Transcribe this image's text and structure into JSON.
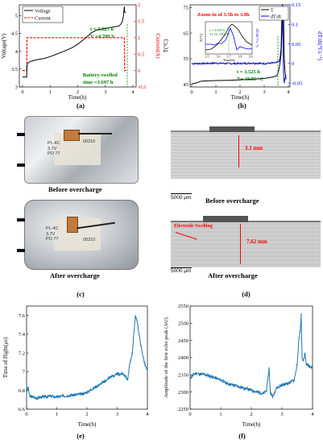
{
  "captions": [
    "(a)",
    "(b)",
    "(c)",
    "(d)",
    "(e)",
    "(f)"
  ],
  "panel_a": {
    "xlabel": "Time(h)",
    "ylabel_left": "Voltage(V)",
    "ylabel_right": "Current(A)",
    "legend": [
      "Voltage",
      "Current"
    ],
    "ann_t": "t = 3.525 h",
    "ann_v": "V =4.709 V",
    "ann_swell1": "Battery swelled",
    "ann_swell2": "time =3.697 h",
    "xticks": [
      "0",
      "1",
      "2",
      "3",
      "4"
    ],
    "yticks_left": [
      "3",
      "3.5",
      "4",
      "4.5",
      "5"
    ],
    "yticks_right": [
      "-0.5",
      "0",
      "0.5",
      "1",
      "1.5",
      "2"
    ],
    "colors": {
      "voltage": "#000000",
      "current": "#ff0000",
      "annotation": "#008000"
    }
  },
  "panel_b": {
    "xlabel": "Time(h)",
    "ylabel_left": "T(°C)",
    "ylabel_right": "dT/dt(°Cs⁻¹)",
    "legend": [
      "T",
      "dT/dt"
    ],
    "zoom_title": "Zoom-in of 3.5h to 3.9h",
    "inset_ann1": "t = 3.697 h",
    "inset_ann2": "T= 61.190 °C",
    "inset_xlabel": "Time(h)",
    "inset_ylabel_left": "T(°C)",
    "inset_ylabel_right": "dT/dt(°Cs⁻¹)",
    "inset_xticks": [
      "3.5",
      "3.6",
      "3.7",
      "3.8",
      "3.9"
    ],
    "ann_t": "t = 3.525 h",
    "ann_T": "T= 48.85 °C",
    "xticks": [
      "0",
      "1",
      "2",
      "3",
      "4"
    ],
    "yticks_left": [
      "45",
      "55",
      "65",
      "75"
    ],
    "yticks_right": [
      "-0.05",
      "0",
      "0.05",
      "0.1",
      "0.15"
    ],
    "colors": {
      "temp": "#000000",
      "dtdt": "#0000ff",
      "zoom": "#ff0000",
      "annotation": "#008000"
    }
  },
  "panel_c": {
    "before": "Before overcharge",
    "after": "After overcharge",
    "label_lines": [
      "PL-4C",
      "3.7V",
      "PO 77"
    ],
    "label_serial": "00210"
  },
  "panel_d": {
    "before": "Before overcharge",
    "after": "After overcharge",
    "scale": "5000 μm",
    "thickness_before": "3.1 mm",
    "thickness_after": "7.62 mm",
    "swelling": "Electrode Swelling",
    "colors": {
      "label": "#ff0000"
    }
  },
  "panel_e": {
    "xlabel": "Time(h)",
    "ylabel": "Time of flight(μs)",
    "xticks": [
      "0",
      "1",
      "2",
      "3",
      "4"
    ],
    "yticks": [
      "6.6",
      "6.8",
      "7",
      "7.2",
      "7.4",
      "7.6"
    ],
    "colors": {
      "line": "#1f77b4"
    }
  },
  "panel_f": {
    "xlabel": "Time(h)",
    "ylabel": "Amplitude of the first echo peak (AU)",
    "xticks": [
      "0",
      "1",
      "2",
      "3",
      "4"
    ],
    "yticks": [
      "2250",
      "2300",
      "2350",
      "2400",
      "2450",
      "2500",
      "2550"
    ],
    "colors": {
      "line": "#1f77b4"
    }
  },
  "chart_data": [
    {
      "type": "line",
      "id": "a",
      "xlabel": "Time(h)",
      "ylabel": "Voltage(V)",
      "xlim": [
        0,
        4
      ],
      "ylim": [
        3,
        5.3
      ],
      "y2label": "Current(A)",
      "y2lim": [
        -0.5,
        2
      ],
      "series": [
        {
          "name": "Voltage",
          "axis": "left",
          "x": [
            0,
            0.15,
            0.16,
            0.2,
            0.3,
            0.5,
            0.8,
            1.0,
            1.2,
            1.5,
            1.8,
            2.0,
            2.2,
            2.4,
            2.5,
            2.7,
            3.0,
            3.3,
            3.5,
            3.52,
            3.56,
            3.6,
            3.65,
            3.69,
            3.7,
            3.75
          ],
          "y": [
            3.28,
            3.28,
            3.6,
            3.68,
            3.72,
            3.76,
            3.8,
            3.85,
            3.91,
            4.0,
            4.1,
            4.2,
            4.32,
            4.45,
            4.52,
            4.6,
            4.64,
            4.68,
            4.71,
            4.72,
            4.76,
            4.8,
            4.95,
            5.25,
            5.1,
            5.08
          ]
        },
        {
          "name": "Current",
          "axis": "right",
          "x": [
            0,
            0.15,
            0.16,
            3.69,
            3.7,
            3.75
          ],
          "y": [
            0,
            0,
            1.0,
            1.0,
            0,
            0
          ]
        }
      ]
    },
    {
      "type": "line",
      "id": "b",
      "xlabel": "Time(h)",
      "ylabel": "T(°C)",
      "xlim": [
        0,
        4
      ],
      "ylim": [
        44,
        76
      ],
      "y2label": "dT/dt(°Cs⁻¹)",
      "y2lim": [
        -0.06,
        0.15
      ],
      "series": [
        {
          "name": "T",
          "axis": "left",
          "x": [
            0,
            0.2,
            0.4,
            1.0,
            1.5,
            2.0,
            2.5,
            3.0,
            3.3,
            3.5,
            3.55,
            3.6,
            3.65,
            3.7,
            3.72,
            3.75,
            3.78,
            3.8,
            3.83,
            3.86,
            3.9
          ],
          "y": [
            45.2,
            45.6,
            46.3,
            46.5,
            46.6,
            46.8,
            47.0,
            47.3,
            47.8,
            48.3,
            48.9,
            50.5,
            53.0,
            57.0,
            62.0,
            69.0,
            75.0,
            73.0,
            55.0,
            50.0,
            47.0
          ]
        },
        {
          "name": "dT/dt",
          "axis": "right",
          "x": [
            0,
            0.5,
            1.0,
            1.5,
            2.0,
            2.5,
            3.0,
            3.3,
            3.5,
            3.6,
            3.65,
            3.7,
            3.73,
            3.76,
            3.78,
            3.8,
            3.83,
            3.86,
            3.9
          ],
          "y": [
            0.0,
            0.0,
            0.001,
            0.0,
            0.0,
            0.001,
            0.0,
            0.001,
            0.002,
            0.005,
            0.01,
            0.04,
            0.12,
            0.15,
            0.05,
            -0.02,
            -0.05,
            -0.04,
            -0.03
          ]
        }
      ]
    },
    {
      "type": "line",
      "id": "e",
      "xlabel": "Time(h)",
      "ylabel": "Time of flight(μs)",
      "xlim": [
        0,
        4
      ],
      "ylim": [
        6.6,
        7.7
      ],
      "series": [
        {
          "name": "",
          "x": [
            0,
            0.05,
            0.1,
            0.3,
            0.5,
            0.8,
            1.0,
            1.2,
            1.5,
            1.8,
            2.0,
            2.2,
            2.4,
            2.6,
            2.8,
            3.0,
            3.2,
            3.3,
            3.35,
            3.4,
            3.5,
            3.55,
            3.6,
            3.65,
            3.7,
            3.75,
            3.8,
            3.9,
            4.0
          ],
          "y": [
            6.78,
            6.84,
            6.74,
            6.72,
            6.73,
            6.74,
            6.73,
            6.74,
            6.75,
            6.76,
            6.78,
            6.82,
            6.86,
            6.9,
            6.95,
            6.97,
            6.98,
            6.94,
            6.91,
            7.05,
            7.2,
            7.4,
            7.6,
            7.55,
            7.45,
            7.35,
            7.25,
            7.1,
            7.0
          ]
        }
      ]
    },
    {
      "type": "line",
      "id": "f",
      "xlabel": "Time(h)",
      "ylabel": "Amplitude of the first echo peak (AU)",
      "xlim": [
        0,
        4
      ],
      "ylim": [
        2250,
        2550
      ],
      "series": [
        {
          "name": "",
          "x": [
            0,
            0.1,
            0.2,
            0.3,
            0.5,
            0.7,
            1.0,
            1.2,
            1.5,
            1.7,
            2.0,
            2.2,
            2.4,
            2.5,
            2.58,
            2.62,
            2.7,
            2.8,
            3.0,
            3.2,
            3.4,
            3.5,
            3.55,
            3.6,
            3.63,
            3.66,
            3.7,
            3.75,
            3.8,
            3.9,
            4.0
          ],
          "y": [
            2340,
            2350,
            2355,
            2352,
            2350,
            2345,
            2335,
            2325,
            2318,
            2313,
            2305,
            2300,
            2295,
            2305,
            2370,
            2300,
            2285,
            2310,
            2320,
            2325,
            2335,
            2380,
            2450,
            2480,
            2525,
            2395,
            2390,
            2410,
            2380,
            2375,
            2370
          ]
        }
      ]
    }
  ]
}
